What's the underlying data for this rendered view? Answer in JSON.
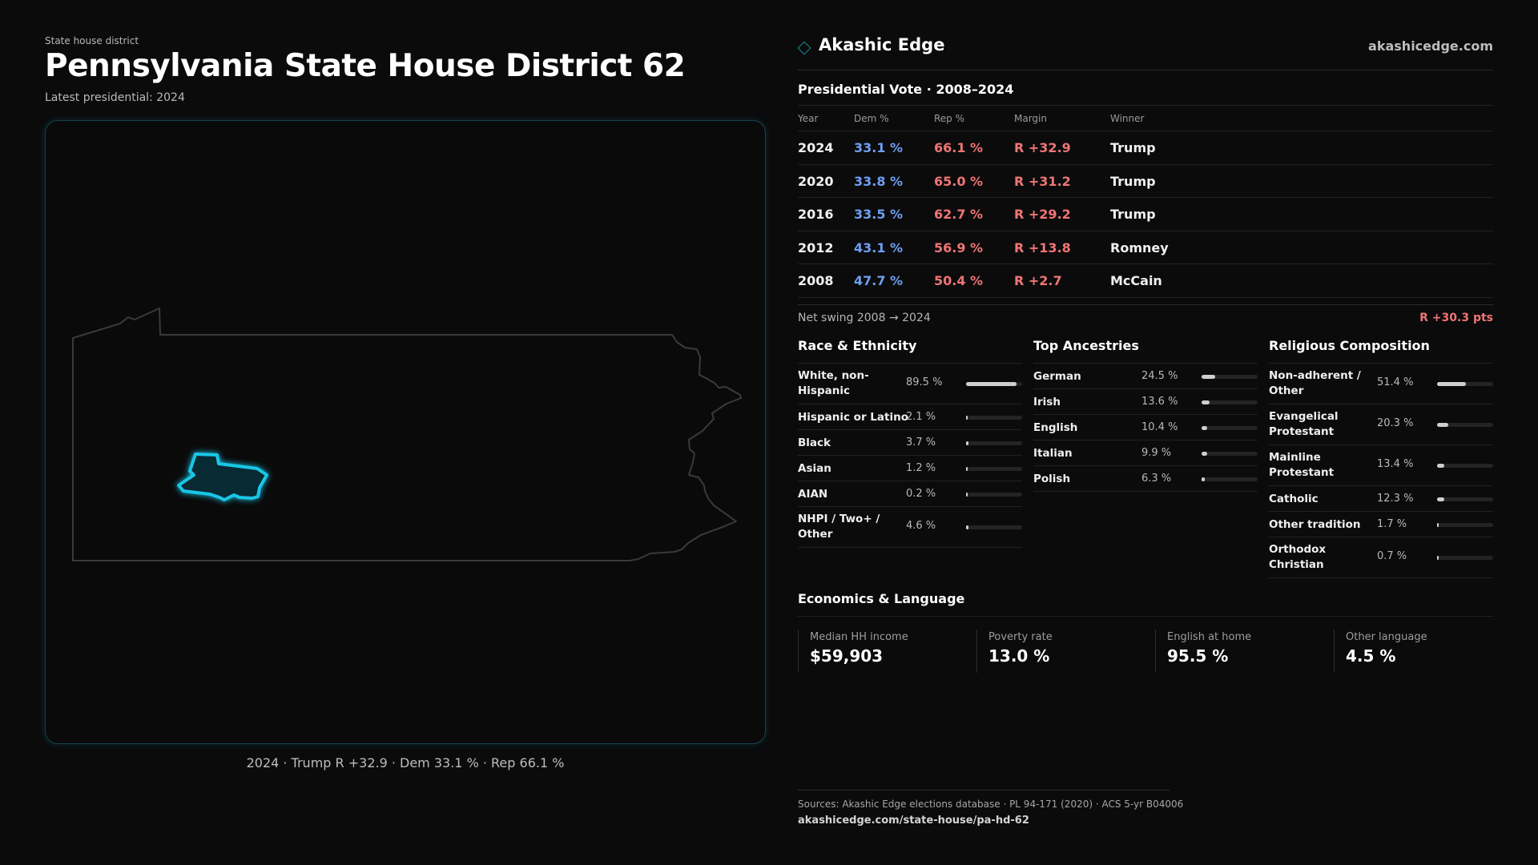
{
  "header": {
    "kicker": "State house district",
    "title": "Pennsylvania State House District 62",
    "latest": "Latest presidential: 2024"
  },
  "map": {
    "caption": "2024 · Trump R +32.9 · Dem 33.1 % · Rep 66.1 %",
    "state_outline_color": "#3a3a3a",
    "district_color": "#19c6e6"
  },
  "brand": {
    "name": "Akashic Edge",
    "url": "akashicedge.com",
    "icon": "diamond-icon",
    "accent": "#1c8c96"
  },
  "votes": {
    "title": "Presidential Vote · 2008–2024",
    "headers": [
      "Year",
      "Dem %",
      "Rep %",
      "Margin",
      "Winner"
    ],
    "rows": [
      {
        "year": "2024",
        "dem": "33.1 %",
        "rep": "66.1 %",
        "margin": "R +32.9",
        "winner": "Trump"
      },
      {
        "year": "2020",
        "dem": "33.8 %",
        "rep": "65.0 %",
        "margin": "R +31.2",
        "winner": "Trump"
      },
      {
        "year": "2016",
        "dem": "33.5 %",
        "rep": "62.7 %",
        "margin": "R +29.2",
        "winner": "Trump"
      },
      {
        "year": "2012",
        "dem": "43.1 %",
        "rep": "56.9 %",
        "margin": "R +13.8",
        "winner": "Romney"
      },
      {
        "year": "2008",
        "dem": "47.7 %",
        "rep": "50.4 %",
        "margin": "R +2.7",
        "winner": "McCain"
      }
    ],
    "dem_color": "#6f9ff2",
    "rep_color": "#ef7574"
  },
  "swing": {
    "label": "Net swing 2008 → 2024",
    "value": "R +30.3 pts"
  },
  "race": {
    "title": "Race & Ethnicity",
    "items": [
      {
        "label": "White, non-Hispanic",
        "value": "89.5 %",
        "pct": 89.5
      },
      {
        "label": "Hispanic or Latino",
        "value": "2.1 %",
        "pct": 2.1
      },
      {
        "label": "Black",
        "value": "3.7 %",
        "pct": 3.7
      },
      {
        "label": "Asian",
        "value": "1.2 %",
        "pct": 1.2
      },
      {
        "label": "AIAN",
        "value": "0.2 %",
        "pct": 0.2
      },
      {
        "label": "NHPI / Two+ / Other",
        "value": "4.6 %",
        "pct": 4.6
      }
    ]
  },
  "ancestry": {
    "title": "Top Ancestries",
    "items": [
      {
        "label": "German",
        "value": "24.5 %",
        "pct": 24.5
      },
      {
        "label": "Irish",
        "value": "13.6 %",
        "pct": 13.6
      },
      {
        "label": "English",
        "value": "10.4 %",
        "pct": 10.4
      },
      {
        "label": "Italian",
        "value": "9.9 %",
        "pct": 9.9
      },
      {
        "label": "Polish",
        "value": "6.3 %",
        "pct": 6.3
      }
    ]
  },
  "religion": {
    "title": "Religious Composition",
    "items": [
      {
        "label": "Non-adherent / Other",
        "value": "51.4 %",
        "pct": 51.4
      },
      {
        "label": "Evangelical Protestant",
        "value": "20.3 %",
        "pct": 20.3
      },
      {
        "label": "Mainline Protestant",
        "value": "13.4 %",
        "pct": 13.4
      },
      {
        "label": "Catholic",
        "value": "12.3 %",
        "pct": 12.3
      },
      {
        "label": "Other tradition",
        "value": "1.7 %",
        "pct": 1.7
      },
      {
        "label": "Orthodox Christian",
        "value": "0.7 %",
        "pct": 0.7
      }
    ]
  },
  "economics": {
    "title": "Economics & Language",
    "items": [
      {
        "label": "Median HH income",
        "value": "$59,903"
      },
      {
        "label": "Poverty rate",
        "value": "13.0 %"
      },
      {
        "label": "English at home",
        "value": "95.5 %"
      },
      {
        "label": "Other language",
        "value": "4.5 %"
      }
    ]
  },
  "sources": {
    "line": "Sources: Akashic Edge elections database · PL 94-171 (2020) · ACS 5-yr B04006",
    "url": "akashicedge.com/state-house/pa-hd-62"
  }
}
